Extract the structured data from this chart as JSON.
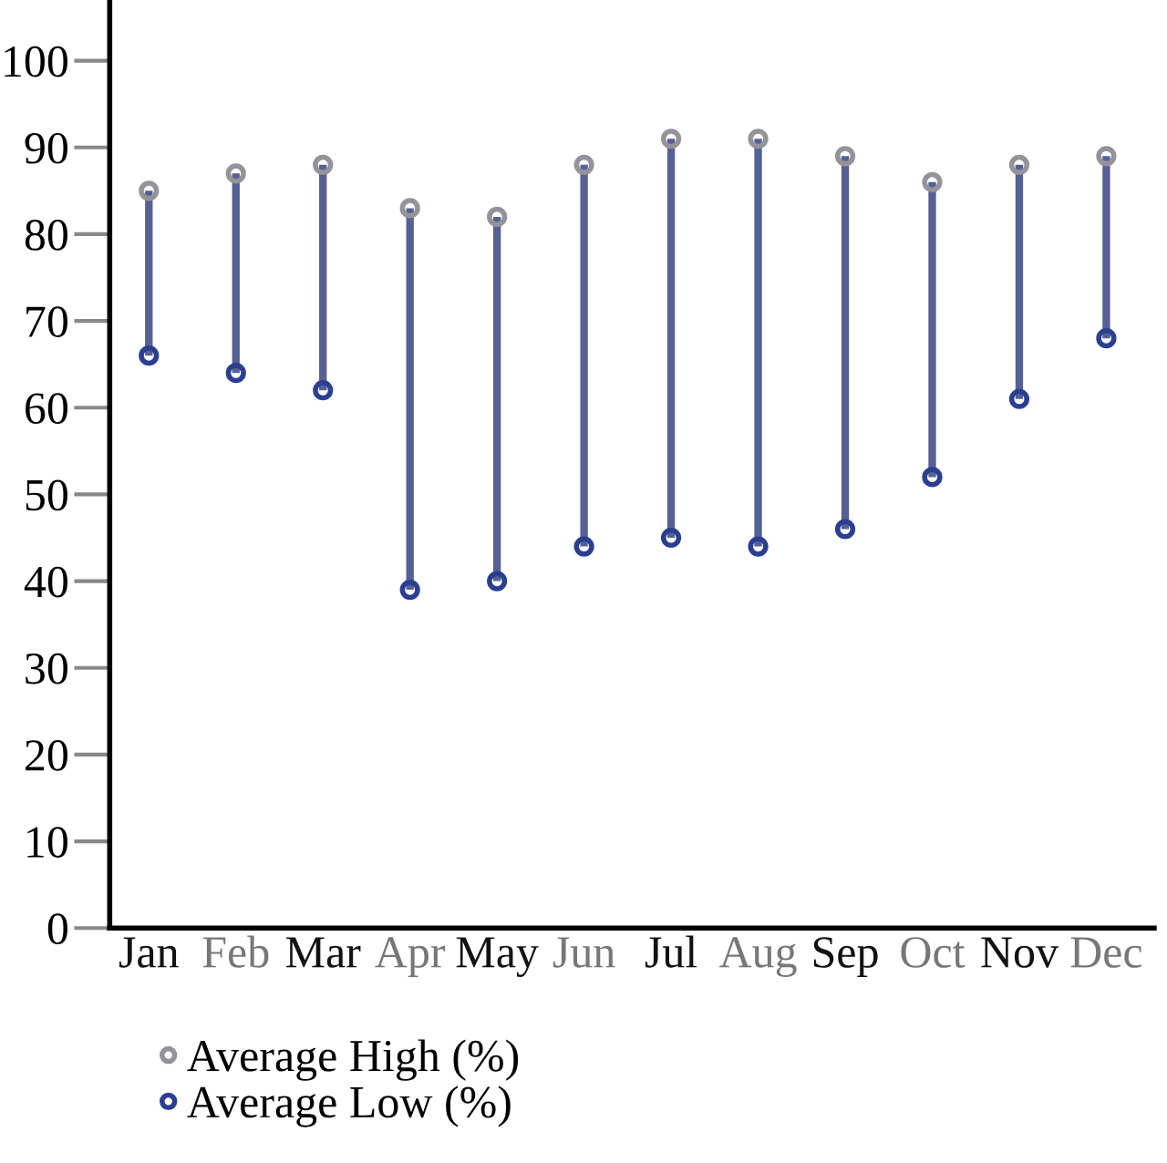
{
  "chart_data": {
    "type": "scatter",
    "categories": [
      "Jan",
      "Feb",
      "Mar",
      "Apr",
      "May",
      "Jun",
      "Jul",
      "Aug",
      "Sep",
      "Oct",
      "Nov",
      "Dec"
    ],
    "series": [
      {
        "name": "Average High (%)",
        "color": "#939399",
        "values": [
          85,
          87,
          88,
          83,
          82,
          88,
          91,
          91,
          89,
          86,
          88,
          89
        ]
      },
      {
        "name": "Average Low (%)",
        "color": "#2b3f91",
        "values": [
          66,
          64,
          62,
          39,
          40,
          44,
          45,
          44,
          46,
          52,
          61,
          68
        ]
      }
    ],
    "ylim": [
      0,
      107
    ],
    "yticks": [
      0,
      10,
      20,
      30,
      40,
      50,
      60,
      70,
      80,
      90,
      100
    ],
    "marker": "circle",
    "grid": false,
    "legend": "bottom"
  }
}
